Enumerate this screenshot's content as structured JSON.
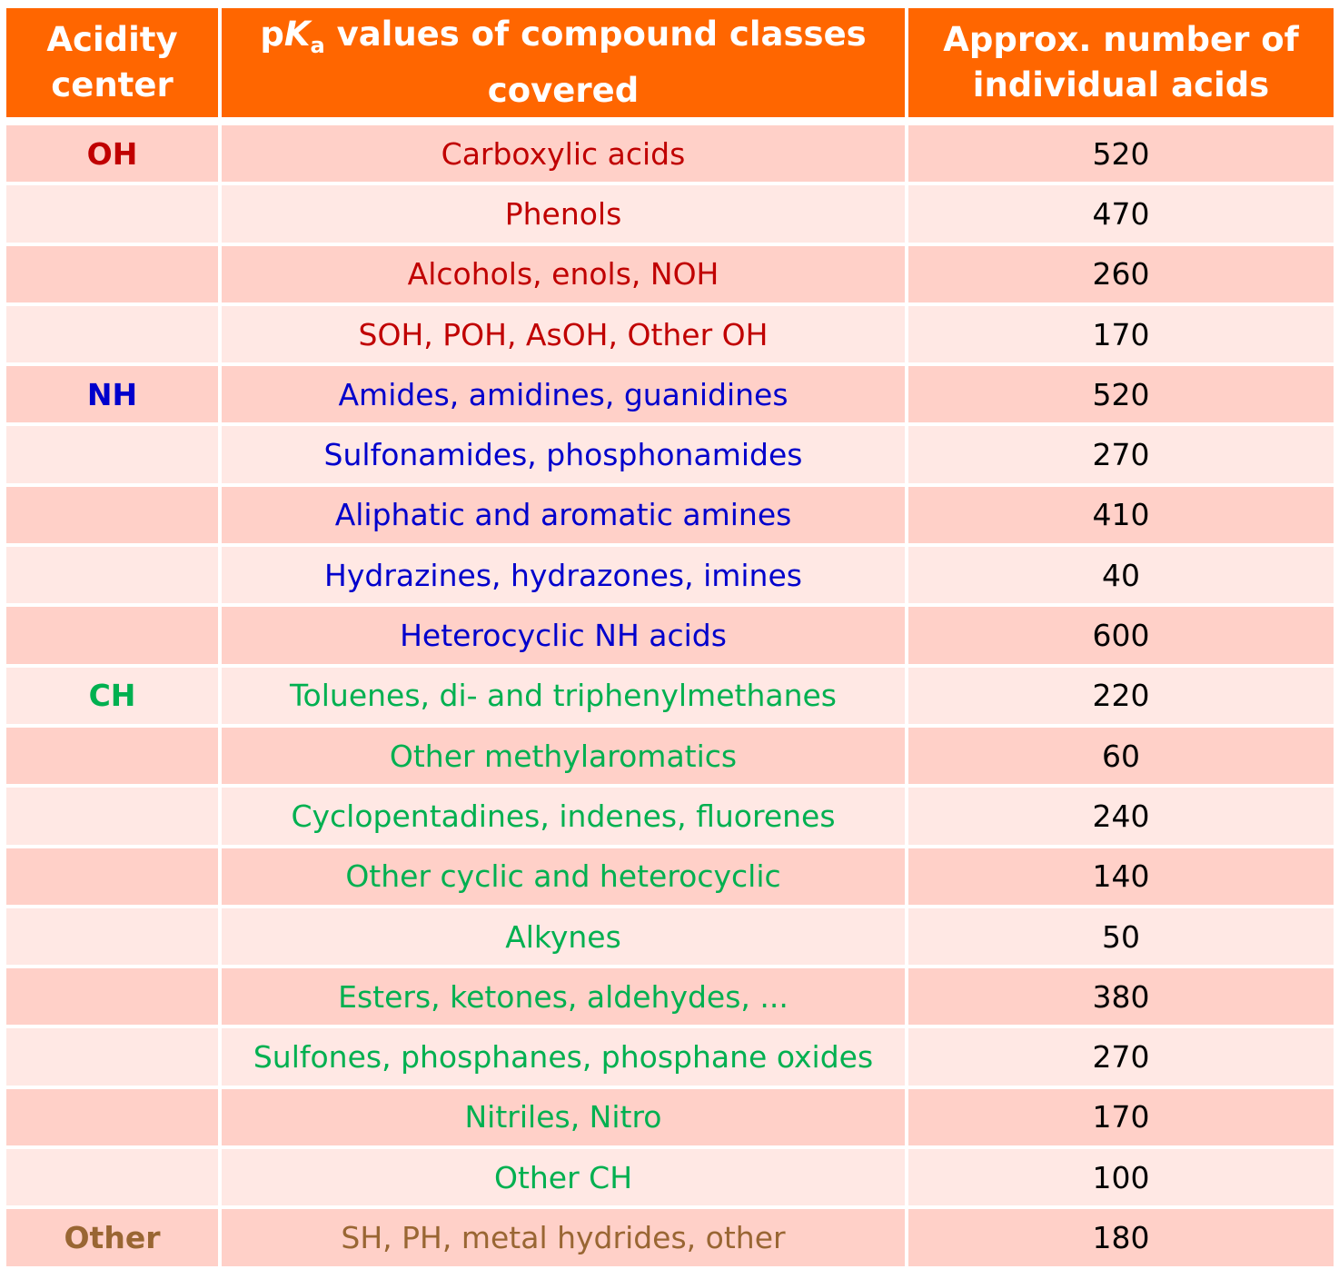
{
  "header": {
    "col1": "Acidity center",
    "col2_p": "p",
    "col2_k": "K",
    "col2_sub": "a",
    "col2_rest": " values of compound classes covered",
    "col3": "Approx. number of individual acids"
  },
  "colors": {
    "OH": "#C00000",
    "NH": "#0000CC",
    "CH": "#00B050",
    "Other": "#996633",
    "header": "#FF6600"
  },
  "rows": [
    {
      "center": "OH",
      "group": "OH",
      "cls": "Carboxylic acids",
      "n": "520"
    },
    {
      "center": "",
      "group": "OH",
      "cls": "Phenols",
      "n": "470"
    },
    {
      "center": "",
      "group": "OH",
      "cls": "Alcohols, enols, NOH",
      "n": "260"
    },
    {
      "center": "",
      "group": "OH",
      "cls": "SOH, POH, AsOH, Other OH",
      "n": "170"
    },
    {
      "center": "NH",
      "group": "NH",
      "cls": "Amides, amidines, guanidines",
      "n": "520"
    },
    {
      "center": "",
      "group": "NH",
      "cls": "Sulfonamides, phosphonamides",
      "n": "270"
    },
    {
      "center": "",
      "group": "NH",
      "cls": "Aliphatic and aromatic amines",
      "n": "410"
    },
    {
      "center": "",
      "group": "NH",
      "cls": "Hydrazines, hydrazones, imines",
      "n": "40"
    },
    {
      "center": "",
      "group": "NH",
      "cls": "Heterocyclic NH acids",
      "n": "600"
    },
    {
      "center": "CH",
      "group": "CH",
      "cls": "Toluenes, di- and triphenylmethanes",
      "n": "220"
    },
    {
      "center": "",
      "group": "CH",
      "cls": "Other methylaromatics",
      "n": "60"
    },
    {
      "center": "",
      "group": "CH",
      "cls": "Cyclopentadines, indenes, fluorenes",
      "n": "240"
    },
    {
      "center": "",
      "group": "CH",
      "cls": "Other cyclic and heterocyclic",
      "n": "140"
    },
    {
      "center": "",
      "group": "CH",
      "cls": "Alkynes",
      "n": "50"
    },
    {
      "center": "",
      "group": "CH",
      "cls": "Esters, ketones, aldehydes, ...",
      "n": "380"
    },
    {
      "center": "",
      "group": "CH",
      "cls": "Sulfones, phosphanes, phosphane oxides",
      "n": "270"
    },
    {
      "center": "",
      "group": "CH",
      "cls": "Nitriles, Nitro",
      "n": "170"
    },
    {
      "center": "",
      "group": "CH",
      "cls": "Other CH",
      "n": "100"
    },
    {
      "center": "Other",
      "group": "Other",
      "cls": "SH, PH, metal hydrides, other",
      "n": "180"
    }
  ]
}
